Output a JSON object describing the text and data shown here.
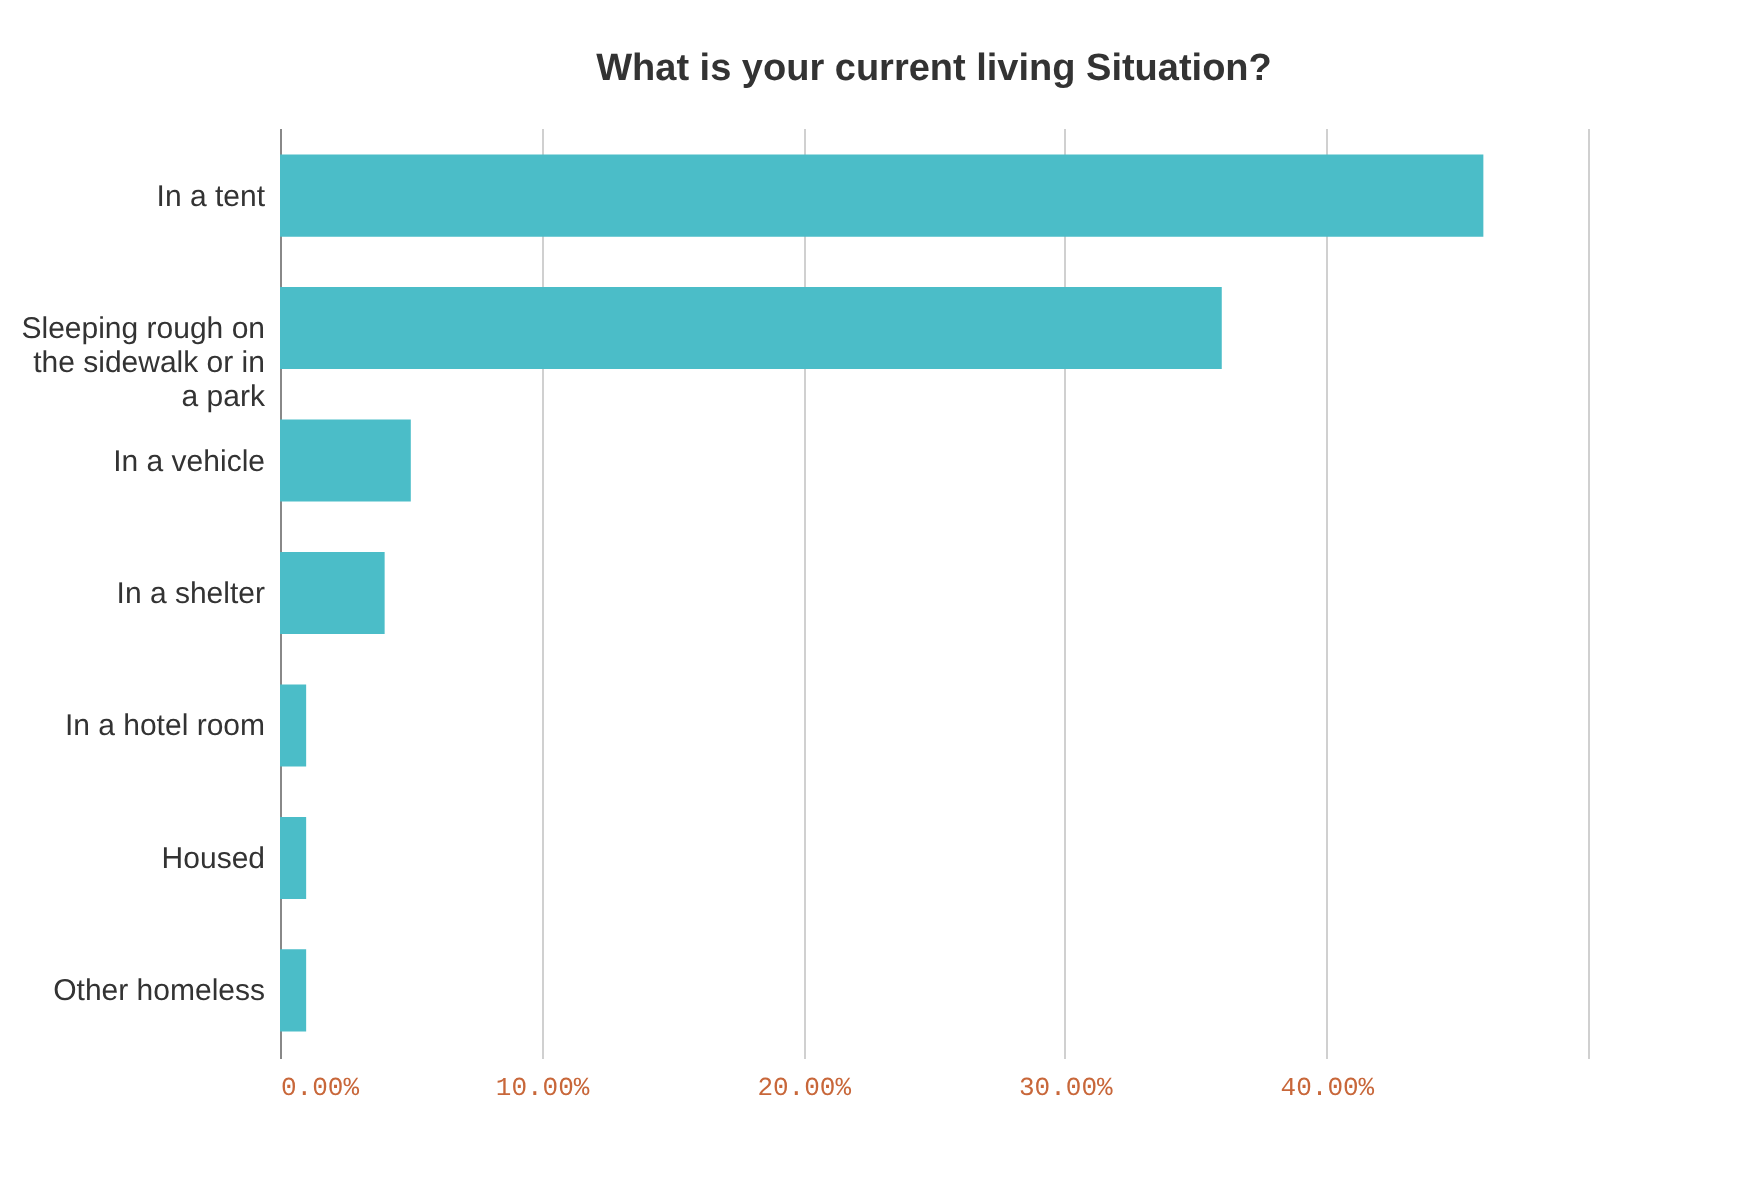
{
  "chart_data": {
    "type": "bar",
    "orientation": "horizontal",
    "title": "What is your current living Situation?",
    "categories": [
      "In a tent",
      "Sleeping rough on the sidewalk or in a park",
      "In a vehicle",
      "In a shelter",
      "In a hotel room",
      "Housed",
      "Other homeless"
    ],
    "values": [
      46,
      36,
      5,
      4,
      1,
      1,
      1
    ],
    "color": "#4bbdc8",
    "xlim": [
      0,
      50
    ],
    "xticks": [
      {
        "value": 0,
        "label": "0.00%"
      },
      {
        "value": 10,
        "label": "10.00%"
      },
      {
        "value": 20,
        "label": "20.00%"
      },
      {
        "value": 30,
        "label": "30.00%"
      },
      {
        "value": 40,
        "label": "40.00%"
      },
      {
        "value": 50,
        "label": null
      }
    ],
    "grid": "x"
  }
}
